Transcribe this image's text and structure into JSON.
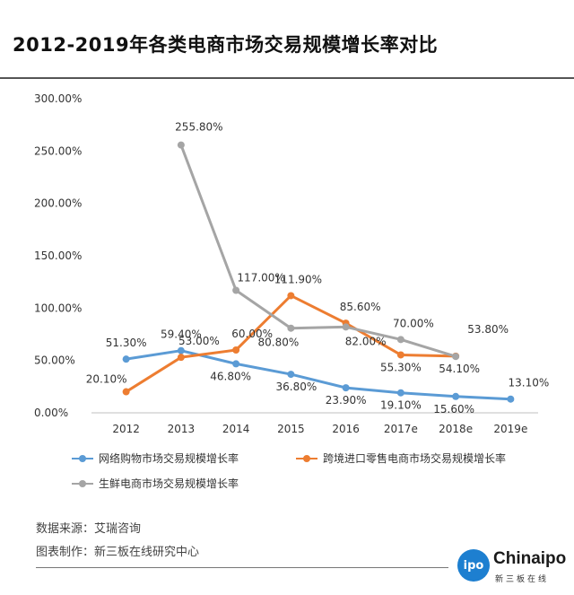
{
  "page": {
    "title": "2012-2019年各类电商市场交易规模增长率对比",
    "source": "数据来源：艾瑞咨询",
    "maker": "图表制作：新三板在线研究中心",
    "logo": {
      "mark": "ipo",
      "word": "Chinaipo",
      "sub": "新三板在线"
    }
  },
  "chart_data": {
    "type": "line",
    "title": "2012-2019年各类电商市场交易规模增长率对比",
    "categories": [
      "2012",
      "2013",
      "2014",
      "2015",
      "2016",
      "2017e",
      "2018e",
      "2019e"
    ],
    "ylim": [
      0,
      300
    ],
    "yticks": [
      "0.00%",
      "50.00%",
      "100.00%",
      "150.00%",
      "200.00%",
      "250.00%",
      "300.00%"
    ],
    "xlabel": "",
    "ylabel": "",
    "grid": false,
    "legend_position": "bottom",
    "series": [
      {
        "name": "网络购物市场交易规模增长率",
        "color": "#5b9bd5",
        "values": [
          51.3,
          59.4,
          46.8,
          36.8,
          23.9,
          19.1,
          15.6,
          13.1
        ],
        "labels": [
          "51.30%",
          "59.40%",
          "46.80%",
          "36.80%",
          "23.90%",
          "19.10%",
          "15.60%",
          "13.10%"
        ]
      },
      {
        "name": "跨境进口零售电商市场交易规模增长率",
        "color": "#ed7d31",
        "values": [
          20.1,
          53.0,
          60.0,
          111.9,
          85.6,
          55.3,
          54.1,
          null
        ],
        "labels": [
          "20.10%",
          "53.00%",
          "60.00%",
          "111.90%",
          "85.60%",
          "55.30%",
          "54.10%",
          null
        ]
      },
      {
        "name": "生鲜电商市场交易规模增长率",
        "color": "#a5a5a5",
        "values": [
          null,
          255.8,
          117.0,
          80.8,
          82.0,
          70.0,
          53.8,
          null
        ],
        "labels": [
          null,
          "255.80%",
          "117.00%",
          "80.80%",
          "82.00%",
          "70.00%",
          "53.80%",
          null
        ]
      }
    ]
  }
}
